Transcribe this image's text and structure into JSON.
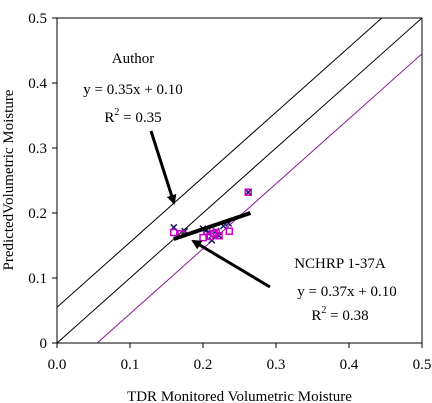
{
  "chart_data": {
    "type": "scatter",
    "xlabel": "TDR Monitored Volumetric Moisture",
    "ylabel": "PredictedVolumetric Moisture",
    "xlim": [
      0,
      0.5
    ],
    "ylim": [
      0,
      0.5
    ],
    "x_ticks": [
      "0.0",
      "0.1",
      "0.2",
      "0.3",
      "0.4",
      "0.5"
    ],
    "y_ticks": [
      "0",
      "0.1",
      "0.2",
      "0.3",
      "0.4",
      "0.5"
    ],
    "grid": false,
    "reference_lines": [
      {
        "style": "black",
        "points": [
          [
            0,
            0.055
          ],
          [
            0.445,
            0.5
          ]
        ]
      },
      {
        "style": "black",
        "points": [
          [
            0,
            0
          ],
          [
            0.5,
            0.5
          ]
        ]
      },
      {
        "style": "purple",
        "points": [
          [
            0.055,
            0
          ],
          [
            0.5,
            0.445
          ]
        ]
      }
    ],
    "series": [
      {
        "marker": "x",
        "color": "#1a1a66",
        "points": [
          [
            0.16,
            0.178
          ],
          [
            0.175,
            0.172
          ],
          [
            0.2,
            0.176
          ],
          [
            0.205,
            0.174
          ],
          [
            0.208,
            0.168
          ],
          [
            0.212,
            0.158
          ],
          [
            0.218,
            0.172
          ],
          [
            0.222,
            0.165
          ],
          [
            0.228,
            0.18
          ],
          [
            0.235,
            0.184
          ],
          [
            0.262,
            0.232
          ]
        ]
      },
      {
        "marker": "square",
        "color": "#cc00cc",
        "points": [
          [
            0.16,
            0.17
          ],
          [
            0.17,
            0.168
          ],
          [
            0.2,
            0.162
          ],
          [
            0.205,
            0.172
          ],
          [
            0.21,
            0.164
          ],
          [
            0.215,
            0.168
          ],
          [
            0.218,
            0.17
          ],
          [
            0.222,
            0.165
          ],
          [
            0.236,
            0.172
          ],
          [
            0.262,
            0.232
          ]
        ]
      }
    ],
    "trendlines": [
      {
        "color": "#000000",
        "width": 4,
        "points": [
          [
            0.16,
            0.16
          ],
          [
            0.265,
            0.2
          ]
        ]
      }
    ],
    "annotations": [
      {
        "lines": [
          "Author",
          "y = 0.35x + 0.10",
          "R^2 = 0.35"
        ]
      },
      {
        "lines": [
          "NCHRP 1-37A",
          "y = 0.37x + 0.10",
          "R^2 = 0.38"
        ]
      }
    ]
  }
}
